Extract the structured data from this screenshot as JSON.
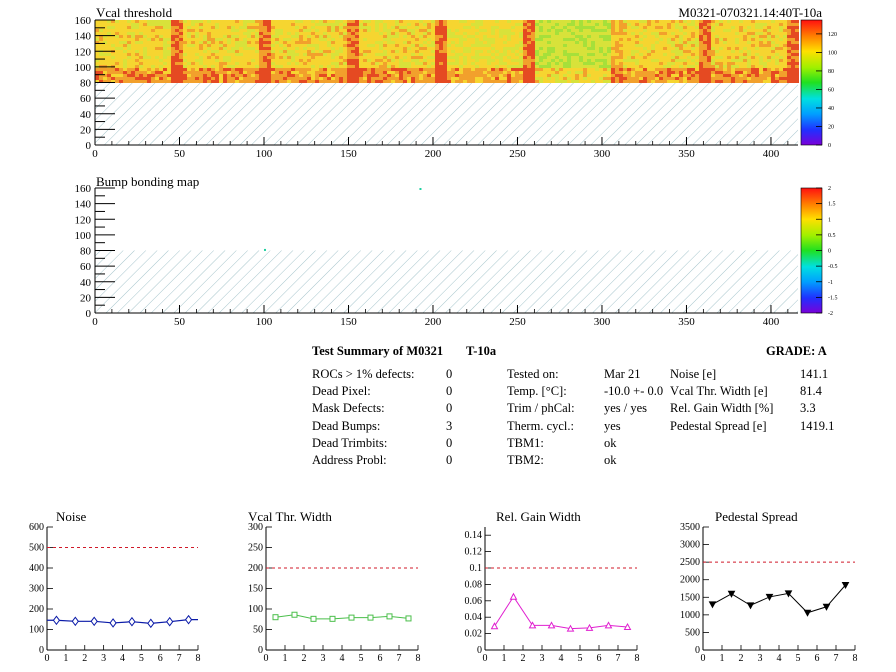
{
  "colors": {
    "heat_low": "#f6d530",
    "heat_mid": "#f0a02a",
    "heat_high": "#e33a1f",
    "heat_green": "#bde23a",
    "hatch": "#8fb6bf",
    "threshold_line": "#d01a2a",
    "noise_series": "#0a1aa8",
    "vcal_series": "#4bbf4b",
    "gain_series": "#e020d0",
    "pedestal_series": "#000000"
  },
  "header": {
    "title": "Vcal threshold",
    "module_id": "M0321-070321.14:40T-10a"
  },
  "map2_title": "Bump bonding map",
  "summary": {
    "title": "Test Summary of M0321",
    "temp_label": "T-10a",
    "grade": "GRADE:  A",
    "defects": [
      {
        "label": "ROCs > 1% defects:",
        "value": "0"
      },
      {
        "label": "Dead Pixel:",
        "value": "0"
      },
      {
        "label": "Mask Defects:",
        "value": "0"
      },
      {
        "label": "Dead Bumps:",
        "value": "3"
      },
      {
        "label": "Dead Trimbits:",
        "value": "0"
      },
      {
        "label": "Address Probl:",
        "value": "0"
      }
    ],
    "conditions": [
      {
        "label": "Tested on:",
        "value": "Mar 21"
      },
      {
        "label": "Temp. [°C]:",
        "value": "-10.0 +- 0.0"
      },
      {
        "label": "Trim / phCal:",
        "value": "yes / yes"
      },
      {
        "label": "Therm. cycl.:",
        "value": "yes"
      },
      {
        "label": "TBM1:",
        "value": "ok"
      },
      {
        "label": "TBM2:",
        "value": "ok"
      }
    ],
    "metrics": [
      {
        "label": "Noise [e]",
        "value": "141.1"
      },
      {
        "label": "Vcal Thr. Width [e]",
        "value": "81.4"
      },
      {
        "label": "Rel. Gain Width [%]",
        "value": "3.3"
      },
      {
        "label": "Pedestal Spread [e]",
        "value": "1419.1"
      }
    ]
  },
  "chart_data": [
    {
      "type": "heatmap",
      "title": "Vcal threshold",
      "x_ticks": [
        "0",
        "50",
        "100",
        "150",
        "200",
        "250",
        "300",
        "350",
        "400"
      ],
      "y_ticks": [
        "0",
        "20",
        "40",
        "60",
        "80",
        "100",
        "120",
        "140",
        "160"
      ],
      "xlim": [
        0,
        416
      ],
      "ylim": [
        0,
        160
      ],
      "filled_rows": [
        80,
        160
      ],
      "colorbar_ticks": [
        "0",
        "20",
        "40",
        "60",
        "80",
        "100",
        "120"
      ],
      "colorbar_range": [
        0,
        135
      ]
    },
    {
      "type": "heatmap",
      "title": "Bump bonding map",
      "x_ticks": [
        "0",
        "50",
        "100",
        "150",
        "200",
        "250",
        "300",
        "350",
        "400"
      ],
      "y_ticks": [
        "0",
        "20",
        "40",
        "60",
        "80",
        "100",
        "120",
        "140",
        "160"
      ],
      "xlim": [
        0,
        416
      ],
      "ylim": [
        0,
        160
      ],
      "colorbar_ticks": [
        "-2",
        "-1.5",
        "-1",
        "-0.5",
        "0",
        "0.5",
        "1",
        "1.5",
        "2"
      ],
      "colorbar_range": [
        -2,
        2
      ]
    },
    {
      "type": "line",
      "title": "Noise",
      "x": [
        0.5,
        1.5,
        2.5,
        3.5,
        4.5,
        5.5,
        6.5,
        7.5
      ],
      "values": [
        145,
        140,
        140,
        132,
        138,
        130,
        138,
        148
      ],
      "xlim": [
        0,
        8
      ],
      "ylim": [
        0,
        600
      ],
      "threshold": 500,
      "x_ticks": [
        "0",
        "1",
        "2",
        "3",
        "4",
        "5",
        "6",
        "7",
        "8"
      ],
      "y_ticks": [
        "0",
        "100",
        "200",
        "300",
        "400",
        "500",
        "600"
      ]
    },
    {
      "type": "line",
      "title": "Vcal Thr. Width",
      "x": [
        0.5,
        1.5,
        2.5,
        3.5,
        4.5,
        5.5,
        6.5,
        7.5
      ],
      "values": [
        80,
        86,
        76,
        76,
        79,
        79,
        82,
        77
      ],
      "xlim": [
        0,
        8
      ],
      "ylim": [
        0,
        300
      ],
      "threshold": 200,
      "x_ticks": [
        "0",
        "1",
        "2",
        "3",
        "4",
        "5",
        "6",
        "7",
        "8"
      ],
      "y_ticks": [
        "0",
        "50",
        "100",
        "150",
        "200",
        "250",
        "300"
      ]
    },
    {
      "type": "line",
      "title": "Rel. Gain Width",
      "x": [
        0.5,
        1.5,
        2.5,
        3.5,
        4.5,
        5.5,
        6.5,
        7.5
      ],
      "values": [
        0.029,
        0.065,
        0.03,
        0.03,
        0.026,
        0.027,
        0.03,
        0.028
      ],
      "xlim": [
        0,
        8
      ],
      "ylim": [
        0,
        0.15
      ],
      "threshold": 0.1,
      "x_ticks": [
        "0",
        "1",
        "2",
        "3",
        "4",
        "5",
        "6",
        "7",
        "8"
      ],
      "y_ticks": [
        "0",
        "0.02",
        "0.04",
        "0.06",
        "0.08",
        "0.1",
        "0.12",
        "0.14"
      ]
    },
    {
      "type": "line",
      "title": "Pedestal Spread",
      "x": [
        0.5,
        1.5,
        2.5,
        3.5,
        4.5,
        5.5,
        6.5,
        7.5
      ],
      "values": [
        1300,
        1600,
        1270,
        1510,
        1610,
        1060,
        1230,
        1850
      ],
      "xlim": [
        0,
        8
      ],
      "ylim": [
        0,
        3500
      ],
      "threshold": 2500,
      "x_ticks": [
        "0",
        "1",
        "2",
        "3",
        "4",
        "5",
        "6",
        "7",
        "8"
      ],
      "y_ticks": [
        "0",
        "500",
        "1000",
        "1500",
        "2000",
        "2500",
        "3000",
        "3500"
      ]
    }
  ]
}
